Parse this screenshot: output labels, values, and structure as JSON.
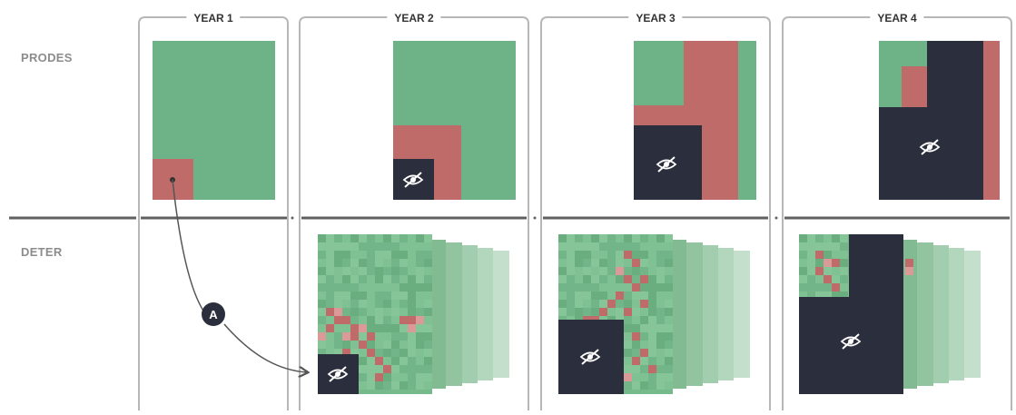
{
  "row_labels": {
    "prodes": "PRODES",
    "deter": "DETER"
  },
  "years": [
    "YEAR 1",
    "YEAR 2",
    "YEAR 3",
    "YEAR 4"
  ],
  "annotation": {
    "marker": "A"
  },
  "legend_colors": {
    "forest": "#6db387",
    "deforested": "#bf6b69",
    "cloud_masked": "#2b2f3d",
    "frame": "#b7b7b7",
    "divider": "#606060"
  },
  "icons": {
    "hidden_area": "eye-slash-icon",
    "arrow": "curved-arrow"
  }
}
